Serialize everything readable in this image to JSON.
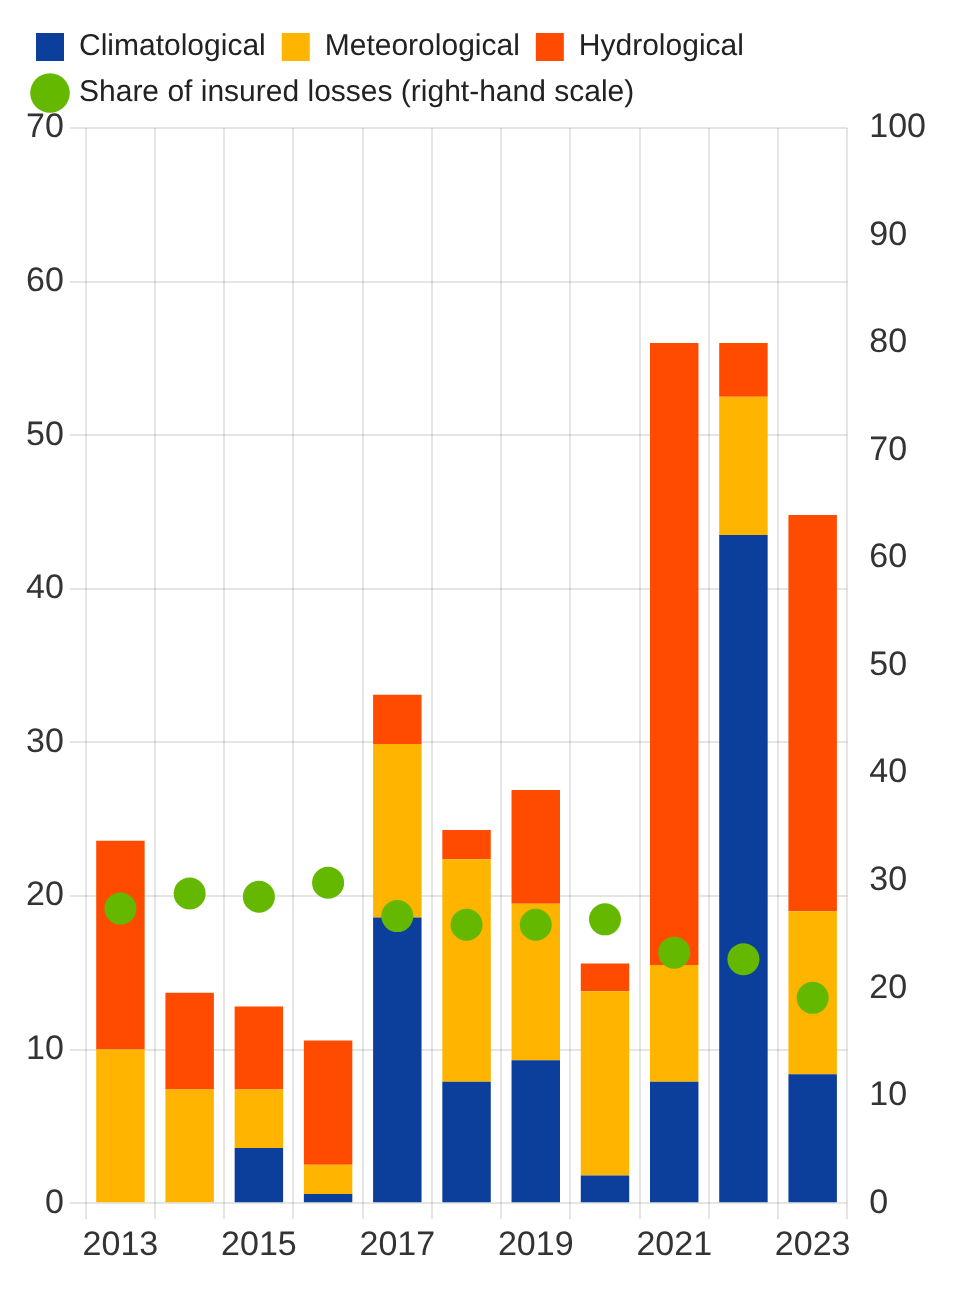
{
  "chart_data": {
    "type": "bar",
    "stacked": true,
    "categories": [
      "2013",
      null,
      "2015",
      null,
      "2017",
      null,
      "2019",
      null,
      "2021",
      null,
      "2023"
    ],
    "series": [
      {
        "name": "Climatological",
        "color": "#0c3e9c",
        "values": [
          0,
          0,
          3.6,
          0.6,
          18.6,
          7.9,
          9.3,
          1.8,
          7.9,
          43.5,
          8.4
        ]
      },
      {
        "name": "Meteorological",
        "color": "#ffb400",
        "values": [
          10.0,
          7.4,
          3.8,
          1.9,
          11.3,
          14.5,
          10.2,
          12.0,
          7.6,
          9.0,
          10.6
        ]
      },
      {
        "name": "Hydrological",
        "color": "#ff4b00",
        "values": [
          13.6,
          6.3,
          5.4,
          8.1,
          3.2,
          1.9,
          7.4,
          1.8,
          40.5,
          3.5,
          25.8
        ]
      },
      {
        "name": "Share of insured losses (right-hand scale)",
        "type": "scatter",
        "axis": "y2",
        "color": "#65b800",
        "marker": "circle",
        "values": [
          27.4,
          28.8,
          28.5,
          29.8,
          26.7,
          25.9,
          25.9,
          26.4,
          23.3,
          22.7,
          19.1
        ]
      }
    ],
    "ylim": [
      0,
      70
    ],
    "yticks": [
      0,
      10,
      20,
      30,
      40,
      50,
      60,
      70
    ],
    "y2lim": [
      0,
      100
    ],
    "y2ticks": [
      0,
      10,
      20,
      30,
      40,
      50,
      60,
      70,
      80,
      90,
      100
    ],
    "grid": true,
    "legend": "top left"
  }
}
